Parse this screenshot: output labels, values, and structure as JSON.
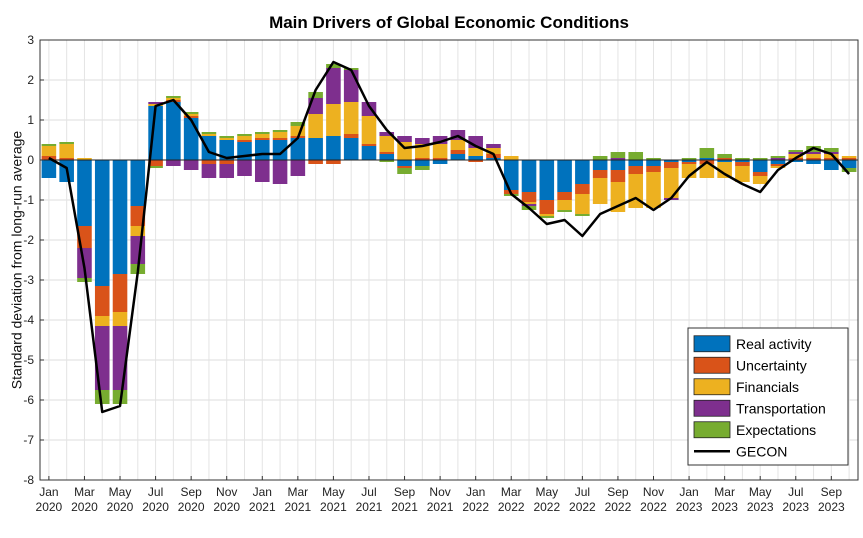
{
  "chart_data": {
    "type": "bar",
    "stacked": true,
    "title": "Main Drivers of Global Economic Conditions",
    "ylabel": "Standard deviation from long-run average",
    "xlabel": "",
    "ylim": [
      -8,
      3
    ],
    "yticks": [
      "-8",
      "-7",
      "-6",
      "-5",
      "-4",
      "-3",
      "-2",
      "-1",
      "0",
      "1",
      "2",
      "3"
    ],
    "grid": true,
    "legend_position": "bottom-right",
    "categories": [
      "2020-01",
      "2020-02",
      "2020-03",
      "2020-04",
      "2020-05",
      "2020-06",
      "2020-07",
      "2020-08",
      "2020-09",
      "2020-10",
      "2020-11",
      "2020-12",
      "2021-01",
      "2021-02",
      "2021-03",
      "2021-04",
      "2021-05",
      "2021-06",
      "2021-07",
      "2021-08",
      "2021-09",
      "2021-10",
      "2021-11",
      "2021-12",
      "2022-01",
      "2022-02",
      "2022-03",
      "2022-04",
      "2022-05",
      "2022-06",
      "2022-07",
      "2022-08",
      "2022-09",
      "2022-10",
      "2022-11",
      "2022-12",
      "2023-01",
      "2023-02",
      "2023-03",
      "2023-04",
      "2023-05",
      "2023-06",
      "2023-07",
      "2023-08",
      "2023-09",
      "2023-10"
    ],
    "xtick_labels": [
      {
        "month": "Jan",
        "year": "2020",
        "index": 0
      },
      {
        "month": "Mar",
        "year": "2020",
        "index": 2
      },
      {
        "month": "May",
        "year": "2020",
        "index": 4
      },
      {
        "month": "Jul",
        "year": "2020",
        "index": 6
      },
      {
        "month": "Sep",
        "year": "2020",
        "index": 8
      },
      {
        "month": "Nov",
        "year": "2020",
        "index": 10
      },
      {
        "month": "Jan",
        "year": "2021",
        "index": 12
      },
      {
        "month": "Mar",
        "year": "2021",
        "index": 14
      },
      {
        "month": "May",
        "year": "2021",
        "index": 16
      },
      {
        "month": "Jul",
        "year": "2021",
        "index": 18
      },
      {
        "month": "Sep",
        "year": "2021",
        "index": 20
      },
      {
        "month": "Nov",
        "year": "2021",
        "index": 22
      },
      {
        "month": "Jan",
        "year": "2022",
        "index": 24
      },
      {
        "month": "Mar",
        "year": "2022",
        "index": 26
      },
      {
        "month": "May",
        "year": "2022",
        "index": 28
      },
      {
        "month": "Jul",
        "year": "2022",
        "index": 30
      },
      {
        "month": "Sep",
        "year": "2022",
        "index": 32
      },
      {
        "month": "Nov",
        "year": "2022",
        "index": 34
      },
      {
        "month": "Jan",
        "year": "2023",
        "index": 36
      },
      {
        "month": "Mar",
        "year": "2023",
        "index": 38
      },
      {
        "month": "May",
        "year": "2023",
        "index": 40
      },
      {
        "month": "Jul",
        "year": "2023",
        "index": 42
      },
      {
        "month": "Sep",
        "year": "2023",
        "index": 44
      }
    ],
    "series": [
      {
        "name": "Real activity",
        "color": "#0072BD",
        "values": [
          -0.45,
          -0.55,
          -1.65,
          -3.15,
          -2.85,
          -1.15,
          1.35,
          1.45,
          1.05,
          0.6,
          0.5,
          0.45,
          0.5,
          0.5,
          0.55,
          0.55,
          0.6,
          0.55,
          0.35,
          0.15,
          -0.15,
          -0.15,
          -0.1,
          0.15,
          0.1,
          0.05,
          -0.75,
          -0.8,
          -1.0,
          -0.8,
          -0.6,
          -0.25,
          -0.25,
          -0.15,
          -0.15,
          -0.05,
          -0.05,
          0.05,
          -0.05,
          -0.05,
          -0.3,
          -0.1,
          -0.05,
          -0.1,
          -0.25,
          -0.2
        ]
      },
      {
        "name": "Uncertainty",
        "color": "#D95319",
        "values": [
          0.1,
          0.05,
          -0.55,
          -0.75,
          -0.95,
          -0.5,
          -0.15,
          0.05,
          0.05,
          -0.1,
          -0.1,
          0.05,
          0.05,
          0.05,
          0.05,
          -0.1,
          -0.1,
          0.1,
          0.05,
          0.05,
          -0.05,
          0.05,
          0.05,
          0.1,
          -0.05,
          0.1,
          -0.1,
          -0.25,
          -0.35,
          -0.2,
          -0.25,
          -0.2,
          -0.3,
          -0.2,
          -0.15,
          -0.15,
          -0.05,
          -0.1,
          0.05,
          -0.1,
          -0.1,
          -0.05,
          0.05,
          0.05,
          0.05,
          0.05
        ]
      },
      {
        "name": "Financials",
        "color": "#EDB120",
        "values": [
          0.25,
          0.35,
          0.05,
          -0.25,
          -0.35,
          -0.25,
          0.05,
          0.05,
          0.05,
          0.05,
          0.05,
          0.1,
          0.1,
          0.15,
          0.25,
          0.6,
          0.8,
          0.8,
          0.7,
          0.4,
          0.45,
          0.35,
          0.35,
          0.25,
          0.2,
          0.15,
          0.1,
          -0.05,
          -0.05,
          -0.25,
          -0.5,
          -0.65,
          -0.75,
          -0.85,
          -0.9,
          -0.75,
          -0.35,
          -0.35,
          -0.4,
          -0.4,
          -0.2,
          -0.05,
          0.1,
          0.1,
          0.1,
          0.05
        ]
      },
      {
        "name": "Transportation",
        "color": "#7E2F8E",
        "values": [
          0.0,
          0.0,
          -0.75,
          -1.6,
          -1.6,
          -0.7,
          0.05,
          -0.15,
          -0.25,
          -0.35,
          -0.35,
          -0.4,
          -0.55,
          -0.6,
          -0.4,
          0.4,
          0.9,
          0.8,
          0.35,
          0.1,
          0.15,
          0.15,
          0.2,
          0.25,
          0.3,
          0.1,
          0.0,
          -0.05,
          0.0,
          0.0,
          0.0,
          0.0,
          0.05,
          0.0,
          0.0,
          -0.05,
          0.0,
          0.0,
          0.0,
          0.0,
          0.0,
          0.05,
          0.05,
          0.05,
          0.05,
          0.0
        ]
      },
      {
        "name": "Expectations",
        "color": "#77AC30",
        "values": [
          0.05,
          0.05,
          -0.1,
          -0.35,
          -0.35,
          -0.25,
          -0.05,
          0.05,
          0.05,
          0.05,
          0.05,
          0.05,
          0.05,
          0.05,
          0.1,
          0.15,
          0.1,
          0.05,
          0.0,
          -0.05,
          -0.15,
          -0.1,
          0.0,
          0.0,
          0.0,
          0.0,
          -0.05,
          -0.1,
          -0.05,
          -0.05,
          -0.05,
          0.1,
          0.15,
          0.2,
          0.05,
          0.0,
          0.05,
          0.25,
          0.1,
          0.05,
          0.05,
          0.05,
          0.05,
          0.15,
          0.1,
          -0.1
        ]
      }
    ],
    "lines": [
      {
        "name": "GECON",
        "color": "#000000",
        "values": [
          0.05,
          -0.2,
          -2.7,
          -6.3,
          -6.15,
          -2.8,
          1.35,
          1.5,
          1.0,
          0.2,
          0.05,
          0.1,
          0.15,
          0.15,
          0.55,
          1.75,
          2.45,
          2.25,
          1.35,
          0.75,
          0.3,
          0.35,
          0.45,
          0.6,
          0.35,
          0.15,
          -0.85,
          -1.2,
          -1.6,
          -1.5,
          -1.9,
          -1.35,
          -1.15,
          -0.95,
          -1.25,
          -0.95,
          -0.4,
          -0.05,
          -0.35,
          -0.6,
          -0.8,
          -0.25,
          0.05,
          0.3,
          0.15,
          -0.35
        ]
      }
    ]
  }
}
